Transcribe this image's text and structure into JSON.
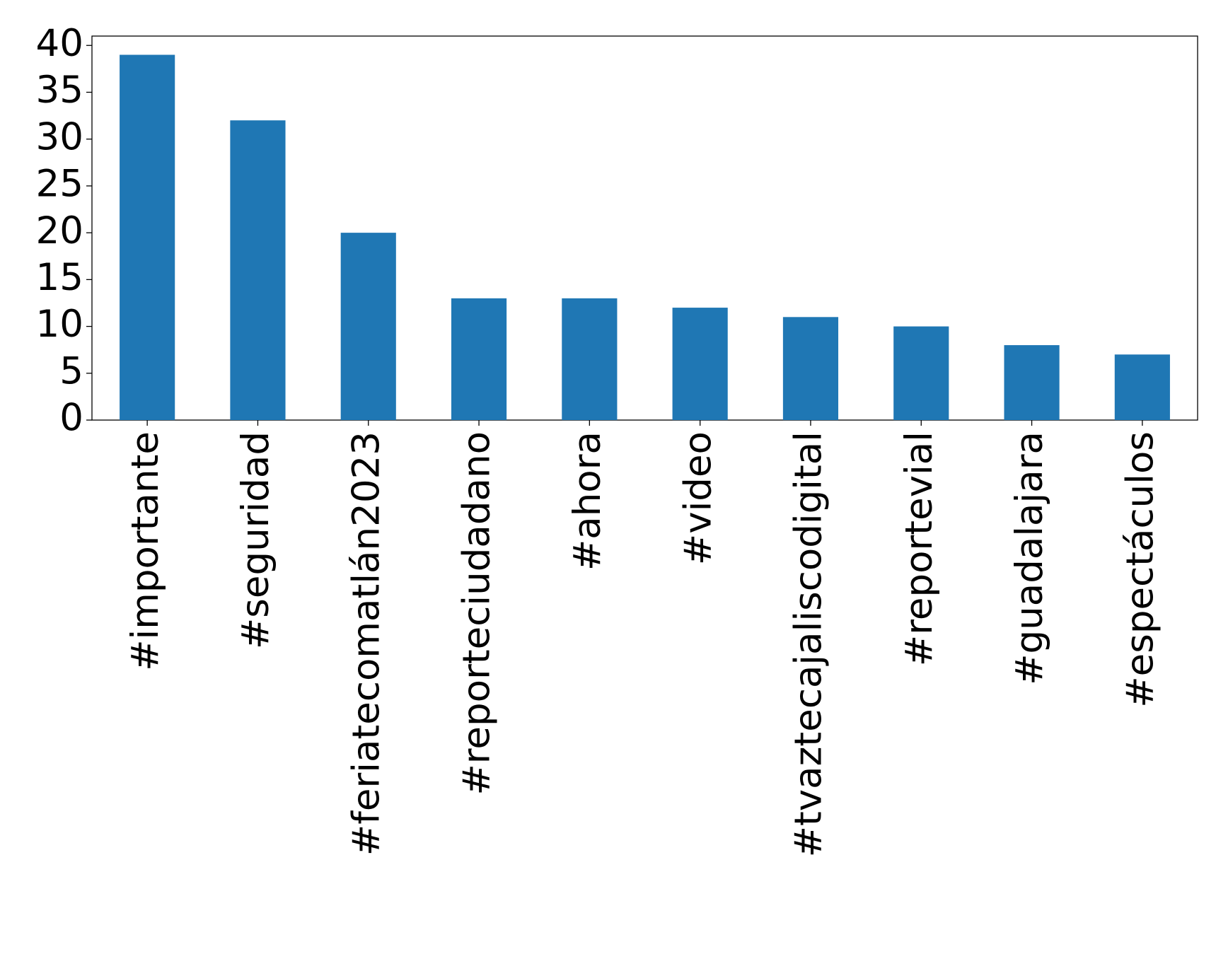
{
  "chart_data": {
    "type": "bar",
    "categories": [
      "#importante",
      "#seguridad",
      "#feriatecomatlán2023",
      "#reporteciudadano",
      "#ahora",
      "#video",
      "#tvaztecajaliscodigital",
      "#reportevial",
      "#guadalajara",
      "#espectáculos"
    ],
    "values": [
      39,
      32,
      20,
      13,
      13,
      12,
      11,
      10,
      8,
      7
    ],
    "color": "#1f77b4",
    "ylim": [
      0,
      41
    ],
    "yticks": [
      0,
      5,
      10,
      15,
      20,
      25,
      30,
      35,
      40
    ],
    "grid": false
  }
}
